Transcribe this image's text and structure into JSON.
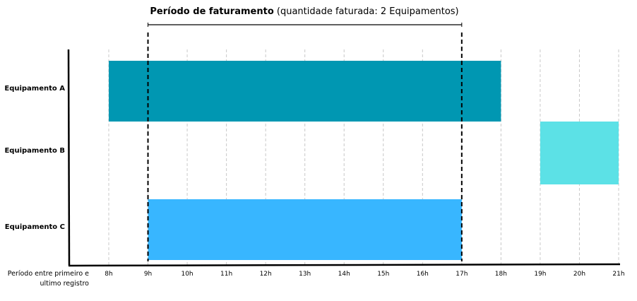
{
  "chart_data": {
    "type": "gantt",
    "title_bold": "Período de faturamento",
    "title_rest": " (quantidade faturada: 2 Equipamentos)",
    "xlabel": "Período entre primeiro e ultimo registro",
    "x_ticks": [
      "8h",
      "9h",
      "10h",
      "11h",
      "12h",
      "13h",
      "14h",
      "15h",
      "16h",
      "17h",
      "18h",
      "19h",
      "20h",
      "21h"
    ],
    "xlim": [
      8,
      21
    ],
    "grid": true,
    "billing_period": [
      9,
      17
    ],
    "categories": [
      "Equipamento A",
      "Equipamento B",
      "Equipamento C"
    ],
    "series": [
      {
        "name": "Equipamento A",
        "start": 8,
        "end": 18,
        "color": "#0097b2"
      },
      {
        "name": "Equipamento B",
        "start": 19,
        "end": 21,
        "color": "#5ce1e6"
      },
      {
        "name": "Equipamento C",
        "start": 9,
        "end": 17,
        "color": "#38b6ff"
      }
    ]
  }
}
